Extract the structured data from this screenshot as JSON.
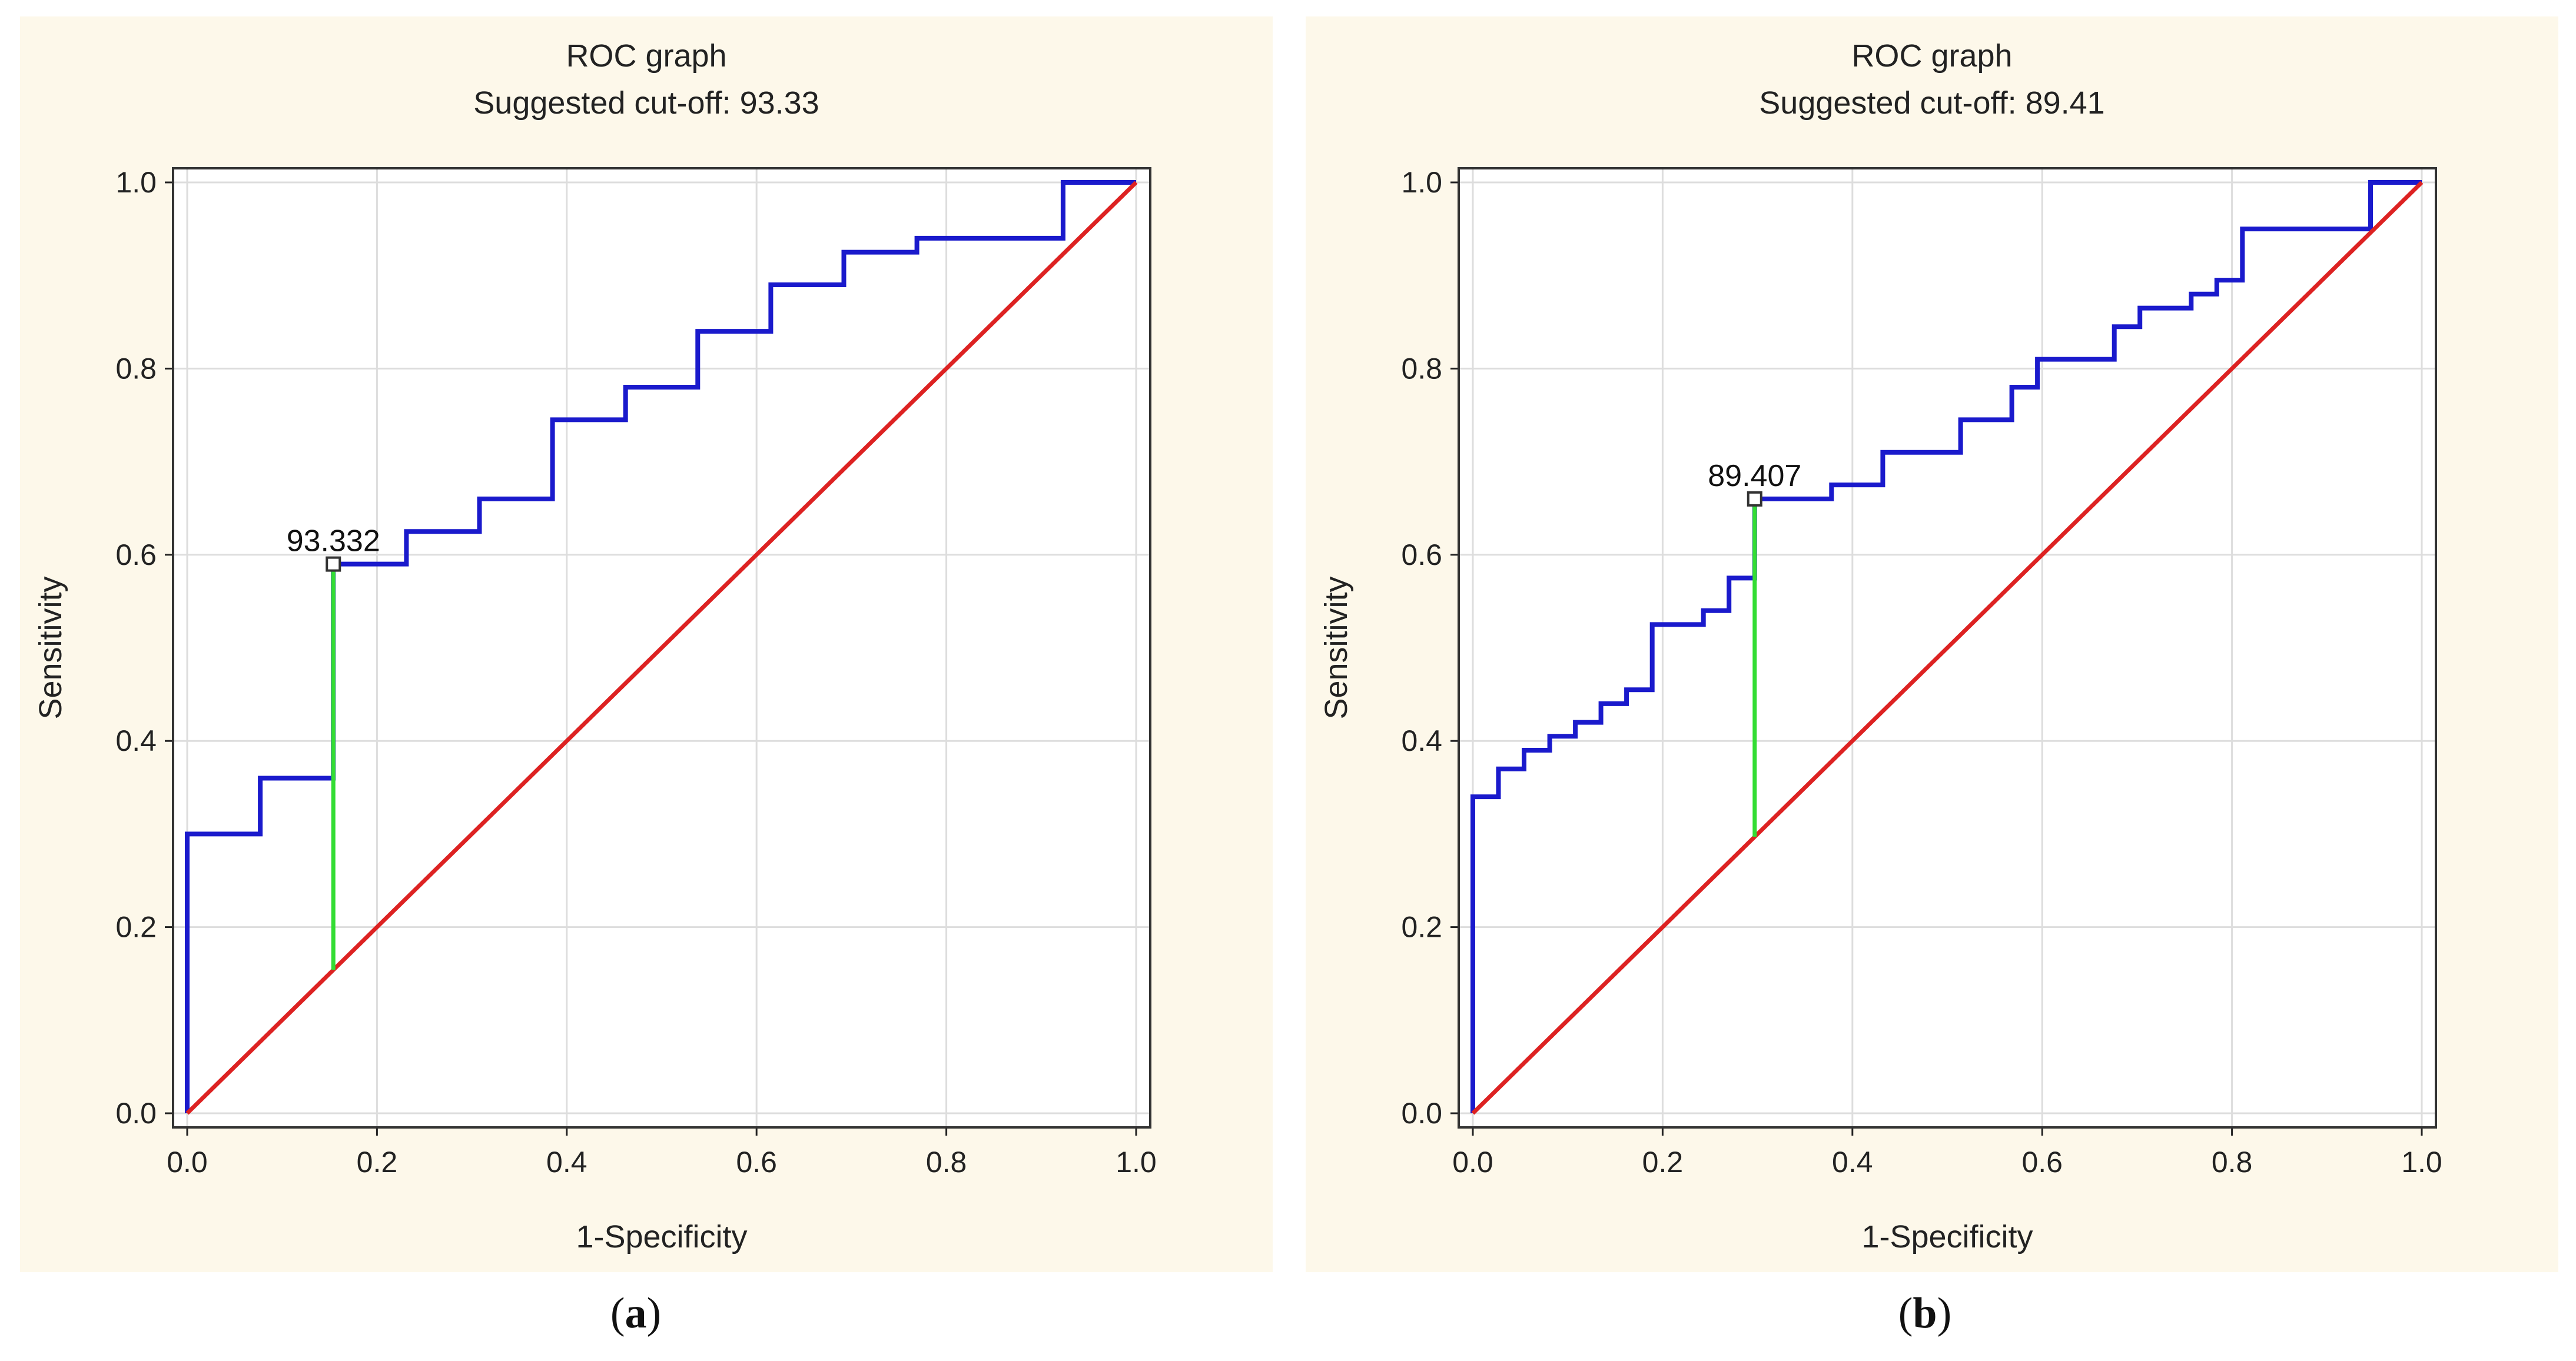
{
  "chart_data": [
    {
      "type": "line",
      "panel": "a",
      "title": "ROC graph",
      "subtitle": "Suggested cut-off: 93.33",
      "xlabel": "1-Specificity",
      "ylabel": "Sensitivity",
      "xlim": [
        0.0,
        1.0
      ],
      "ylim": [
        0.0,
        1.0
      ],
      "xticks": [
        "0.0",
        "0.2",
        "0.4",
        "0.6",
        "0.8",
        "1.0"
      ],
      "yticks": [
        "0.0",
        "0.2",
        "0.4",
        "0.6",
        "0.8",
        "1.0"
      ],
      "grid": true,
      "caption": "a",
      "series": [
        {
          "name": "ROC curve",
          "color": "#1a1acc",
          "x": [
            0.0,
            0.0,
            0.077,
            0.077,
            0.154,
            0.154,
            0.231,
            0.231,
            0.308,
            0.308,
            0.385,
            0.385,
            0.462,
            0.462,
            0.538,
            0.538,
            0.615,
            0.615,
            0.692,
            0.692,
            0.769,
            0.769,
            0.923,
            0.923,
            1.0
          ],
          "y": [
            0.0,
            0.3,
            0.3,
            0.36,
            0.36,
            0.59,
            0.59,
            0.625,
            0.625,
            0.66,
            0.66,
            0.745,
            0.745,
            0.78,
            0.78,
            0.84,
            0.84,
            0.89,
            0.89,
            0.925,
            0.925,
            0.94,
            0.94,
            1.0,
            1.0
          ]
        },
        {
          "name": "Reference line",
          "color": "#dd2222",
          "x": [
            0.0,
            1.0
          ],
          "y": [
            0.0,
            1.0
          ]
        }
      ],
      "cutoff": {
        "label": "93.332",
        "x": 0.154,
        "y": 0.59,
        "color": "#33dd33"
      }
    },
    {
      "type": "line",
      "panel": "b",
      "title": "ROC graph",
      "subtitle": "Suggested cut-off: 89.41",
      "xlabel": "1-Specificity",
      "ylabel": "Sensitivity",
      "xlim": [
        0.0,
        1.0
      ],
      "ylim": [
        0.0,
        1.0
      ],
      "xticks": [
        "0.0",
        "0.2",
        "0.4",
        "0.6",
        "0.8",
        "1.0"
      ],
      "yticks": [
        "0.0",
        "0.2",
        "0.4",
        "0.6",
        "0.8",
        "1.0"
      ],
      "grid": true,
      "caption": "b",
      "series": [
        {
          "name": "ROC curve",
          "color": "#1a1acc",
          "x": [
            0.0,
            0.0,
            0.027,
            0.027,
            0.054,
            0.054,
            0.081,
            0.081,
            0.108,
            0.108,
            0.135,
            0.135,
            0.162,
            0.162,
            0.189,
            0.189,
            0.243,
            0.243,
            0.27,
            0.27,
            0.297,
            0.297,
            0.378,
            0.378,
            0.432,
            0.432,
            0.514,
            0.514,
            0.568,
            0.568,
            0.595,
            0.595,
            0.676,
            0.676,
            0.703,
            0.703,
            0.757,
            0.757,
            0.784,
            0.784,
            0.811,
            0.811,
            0.946,
            0.946,
            1.0
          ],
          "y": [
            0.0,
            0.34,
            0.34,
            0.37,
            0.37,
            0.39,
            0.39,
            0.405,
            0.405,
            0.42,
            0.42,
            0.44,
            0.44,
            0.455,
            0.455,
            0.525,
            0.525,
            0.54,
            0.54,
            0.575,
            0.575,
            0.66,
            0.66,
            0.675,
            0.675,
            0.71,
            0.71,
            0.745,
            0.745,
            0.78,
            0.78,
            0.81,
            0.81,
            0.845,
            0.845,
            0.865,
            0.865,
            0.88,
            0.88,
            0.895,
            0.895,
            0.95,
            0.95,
            1.0,
            1.0
          ]
        },
        {
          "name": "Reference line",
          "color": "#dd2222",
          "x": [
            0.0,
            1.0
          ],
          "y": [
            0.0,
            1.0
          ]
        }
      ],
      "cutoff": {
        "label": "89.407",
        "x": 0.297,
        "y": 0.66,
        "color": "#33dd33"
      }
    }
  ]
}
